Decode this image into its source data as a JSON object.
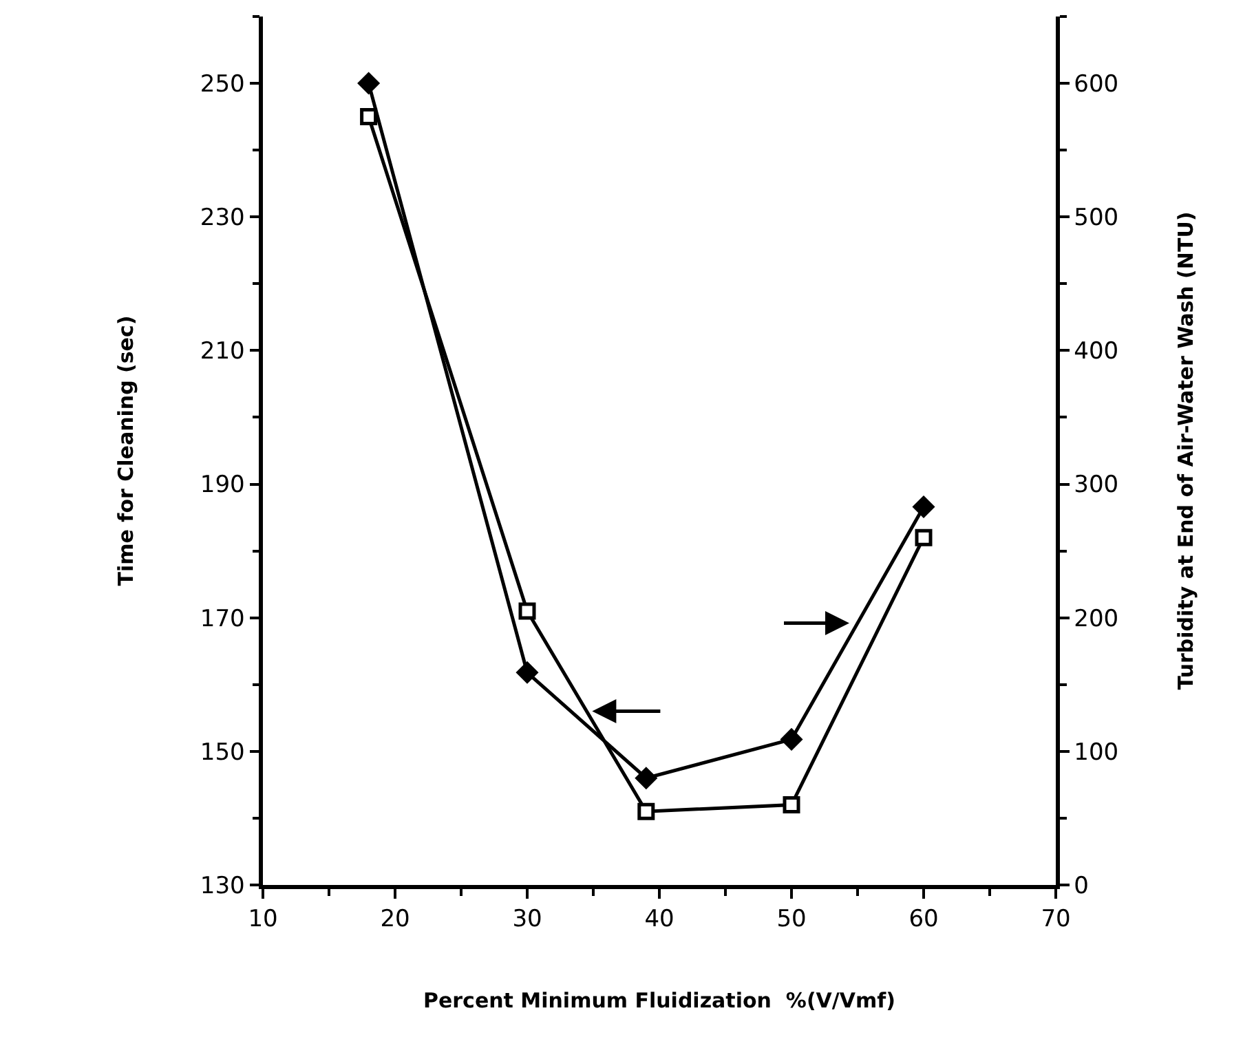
{
  "chart_data": {
    "type": "line",
    "xlabel": "Percent Minimum Fluidization  %(V/Vmf)",
    "ylabel": "Time for Cleaning (sec)",
    "y2label": "Turbidity at End of Air-Water Wash (NTU)",
    "x": [
      18,
      30,
      39,
      50,
      60
    ],
    "series": [
      {
        "color": "#000000",
        "marker": "square",
        "values": [
          245,
          171,
          141,
          142,
          182
        ]
      },
      {
        "color": "#000000",
        "marker": "diamond",
        "axis": "y2",
        "values": [
          600,
          159,
          80,
          109,
          283
        ]
      }
    ],
    "xlim": [
      10,
      70
    ],
    "xticks": [
      10,
      20,
      30,
      40,
      50,
      60,
      70
    ],
    "ylim": [
      130,
      260
    ],
    "yticks": [
      130,
      150,
      170,
      190,
      210,
      230,
      250
    ],
    "y2lim": [
      0,
      650
    ],
    "y2ticks": [
      0,
      100,
      200,
      300,
      400,
      500,
      600
    ],
    "grid": false,
    "line_style": "solid"
  }
}
